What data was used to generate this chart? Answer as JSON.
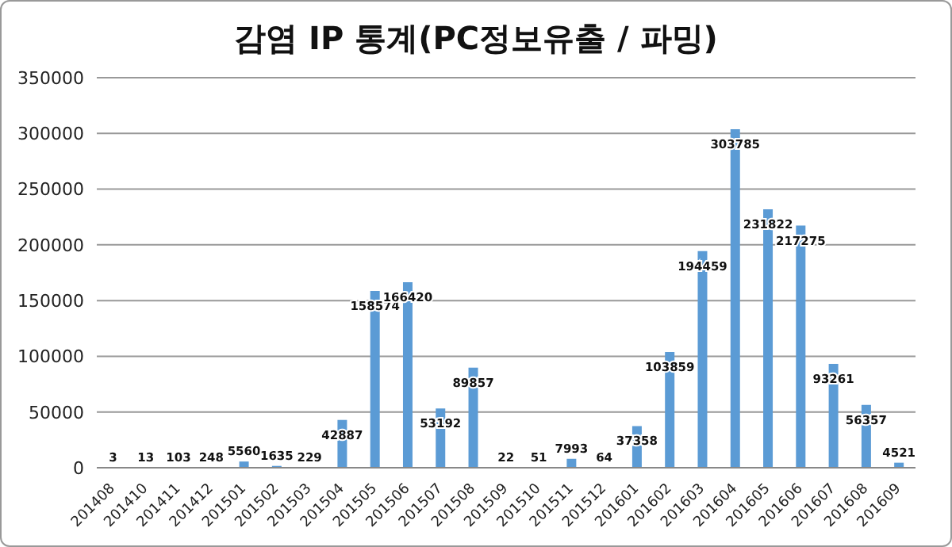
{
  "chart_data": {
    "type": "bar",
    "title": "감염 IP 통계(PC정보유출 / 파밍)",
    "categories": [
      "201408",
      "201410",
      "201411",
      "201412",
      "201501",
      "201502",
      "201503",
      "201504",
      "201505",
      "201506",
      "201507",
      "201508",
      "201509",
      "201510",
      "201511",
      "201512",
      "201601",
      "201602",
      "201603",
      "201604",
      "201605",
      "201606",
      "201607",
      "201608",
      "201609"
    ],
    "values": [
      3,
      13,
      103,
      248,
      5560,
      1635,
      229,
      42887,
      158574,
      166420,
      53192,
      89857,
      22,
      51,
      7993,
      64,
      37358,
      103859,
      194459,
      303785,
      231822,
      217275,
      93261,
      56357,
      4521
    ],
    "color": "#5b9bd5",
    "ylim": [
      0,
      350000
    ],
    "yticks": [
      0,
      50000,
      100000,
      150000,
      200000,
      250000,
      300000,
      350000
    ],
    "grid": "y",
    "data_labels": true
  }
}
